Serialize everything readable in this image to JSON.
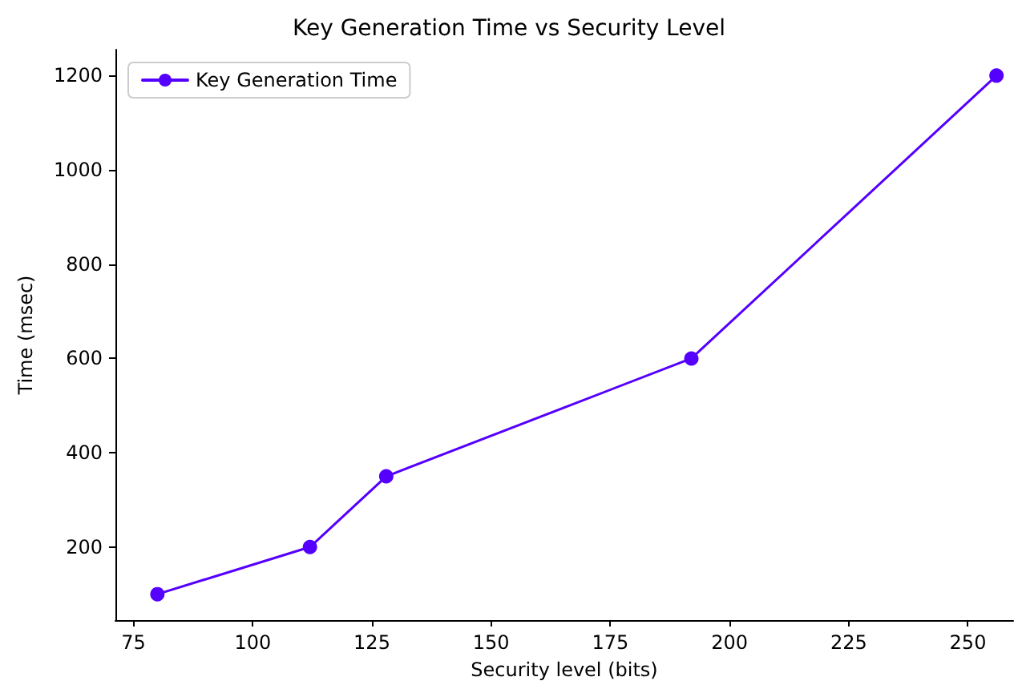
{
  "chart_data": {
    "type": "line",
    "title": "Key Generation Time vs Security Level",
    "xlabel": "Security level (bits)",
    "ylabel": "Time (msec)",
    "x": [
      80,
      112,
      128,
      192,
      256
    ],
    "series": [
      {
        "name": "Key Generation Time",
        "color": "#5500ff",
        "values": [
          100,
          200,
          350,
          600,
          1200
        ]
      }
    ],
    "xlim": [
      71.2,
      259.5
    ],
    "xticks": [
      75,
      100,
      125,
      150,
      175,
      200,
      225,
      250
    ],
    "ylim": [
      45,
      1255
    ],
    "yticks": [
      200,
      400,
      600,
      800,
      1000,
      1200
    ],
    "grid": false,
    "legend": "top left",
    "marker": "circle",
    "line_style": "solid"
  }
}
